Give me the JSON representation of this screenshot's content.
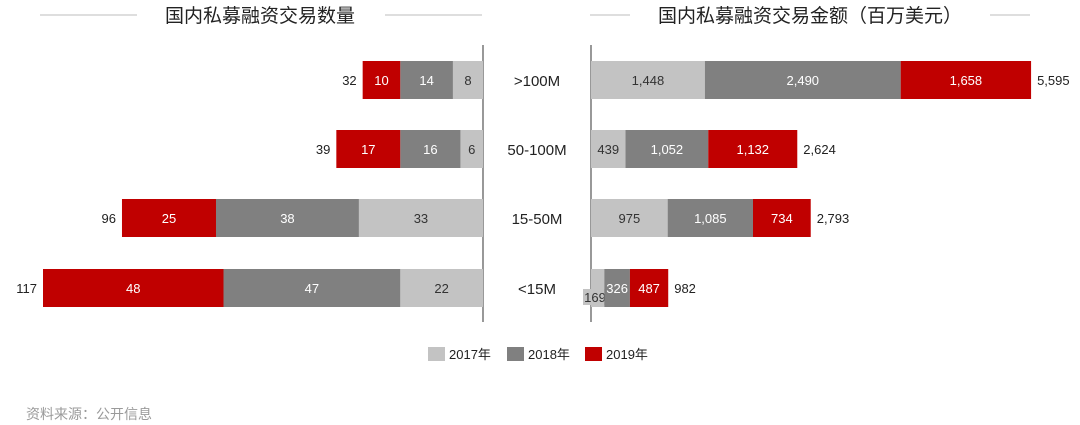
{
  "source": "资料来源：公开信息",
  "colors": {
    "2017": "#c3c3c3",
    "2018": "#808080",
    "2019": "#c00000"
  },
  "legend": [
    {
      "label": "2017年",
      "color": "#c3c3c3"
    },
    {
      "label": "2018年",
      "color": "#808080"
    },
    {
      "label": "2019年",
      "color": "#c00000"
    }
  ],
  "chart_data": [
    {
      "type": "bar",
      "orientation": "horizontal-stacked",
      "title": "国内私募融资交易数量",
      "categories": [
        ">100M",
        "50-100M",
        "15-50M",
        "<15M"
      ],
      "series": [
        {
          "name": "2017年",
          "values": [
            8,
            6,
            33,
            22
          ]
        },
        {
          "name": "2018年",
          "values": [
            14,
            16,
            38,
            47
          ]
        },
        {
          "name": "2019年",
          "values": [
            10,
            17,
            25,
            48
          ]
        }
      ],
      "totals": [
        32,
        39,
        96,
        117
      ],
      "totals_labels": [
        "32",
        "39",
        "96",
        "117"
      ],
      "value_labels": [
        [
          "8",
          "6",
          "33",
          "22"
        ],
        [
          "14",
          "16",
          "38",
          "47"
        ],
        [
          "10",
          "17",
          "25",
          "48"
        ]
      ],
      "legend": "bottom-center"
    },
    {
      "type": "bar",
      "orientation": "horizontal-stacked",
      "title": "国内私募融资交易金额（百万美元）",
      "categories": [
        ">100M",
        "50-100M",
        "15-50M",
        "<15M"
      ],
      "series": [
        {
          "name": "2017年",
          "values": [
            1448,
            439,
            975,
            169
          ]
        },
        {
          "name": "2018年",
          "values": [
            2490,
            1052,
            1085,
            326
          ]
        },
        {
          "name": "2019年",
          "values": [
            1658,
            1132,
            734,
            487
          ]
        }
      ],
      "totals": [
        5595,
        2624,
        2793,
        982
      ],
      "totals_labels": [
        "5,595",
        "2,624",
        "2,793",
        "982"
      ],
      "value_labels": [
        [
          "1,448",
          "439",
          "975",
          "169"
        ],
        [
          "2,490",
          "1,052",
          "1,085",
          "326"
        ],
        [
          "1,658",
          "1,132",
          "734",
          "487"
        ]
      ],
      "legend": "bottom-center"
    }
  ]
}
